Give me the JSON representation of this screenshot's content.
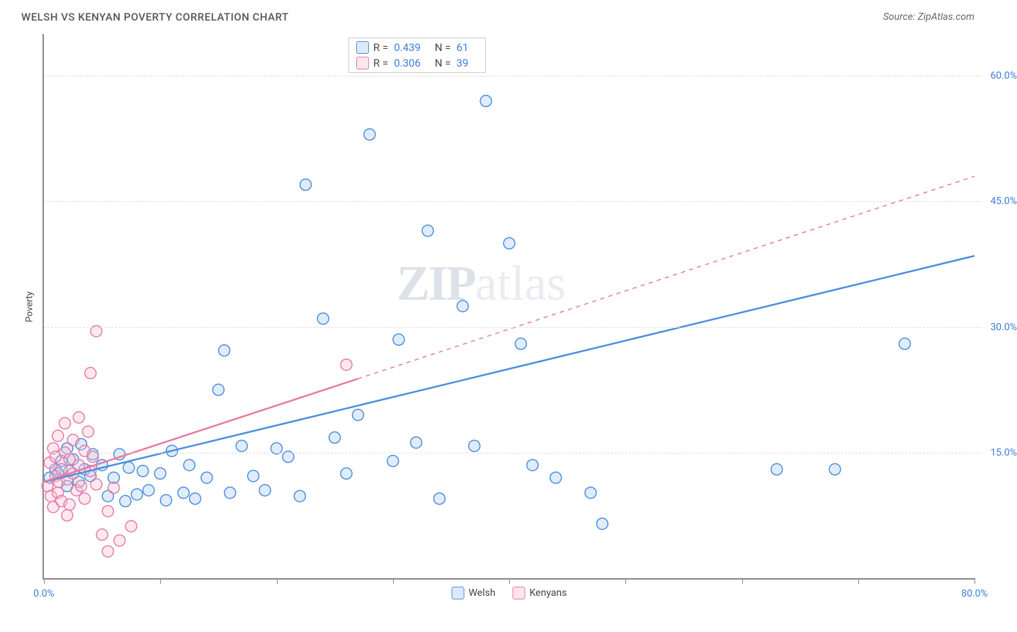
{
  "title": "WELSH VS KENYAN POVERTY CORRELATION CHART",
  "source": "Source: ZipAtlas.com",
  "y_axis_label": "Poverty",
  "watermark_zip": "ZIP",
  "watermark_atlas": "atlas",
  "chart": {
    "type": "scatter",
    "background_color": "#ffffff",
    "grid_color": "#dddddd",
    "axis_color": "#888888",
    "tick_label_color": "#3b7dd8",
    "xlim": [
      0,
      80
    ],
    "ylim": [
      0,
      65
    ],
    "y_ticks": [
      15,
      30,
      45,
      60
    ],
    "y_tick_labels": [
      "15.0%",
      "30.0%",
      "45.0%",
      "60.0%"
    ],
    "x_ticks": [
      0,
      10,
      20,
      30,
      40,
      50,
      60,
      70,
      80
    ],
    "x_min_label": "0.0%",
    "x_max_label": "80.0%",
    "marker_radius": 8,
    "series": [
      {
        "name": "Welsh",
        "color_stroke": "#4c8fdd",
        "color_fill": "#a7c9f0",
        "R": "0.439",
        "N": "61",
        "trend": {
          "x1": 0,
          "y1": 11.5,
          "x2": 80,
          "y2": 38.5,
          "solid_until_x": 80
        },
        "points": [
          [
            0.5,
            12
          ],
          [
            1,
            13
          ],
          [
            1.2,
            12.5
          ],
          [
            1.5,
            14
          ],
          [
            2,
            11
          ],
          [
            2,
            15.5
          ],
          [
            2.2,
            12.8
          ],
          [
            2.5,
            14.2
          ],
          [
            3,
            11.5
          ],
          [
            3.2,
            16
          ],
          [
            3.5,
            13
          ],
          [
            4,
            12.2
          ],
          [
            4.2,
            14.8
          ],
          [
            5,
            13.5
          ],
          [
            5.5,
            9.8
          ],
          [
            6,
            12
          ],
          [
            6.5,
            14.8
          ],
          [
            7,
            9.2
          ],
          [
            7.3,
            13.2
          ],
          [
            8,
            10
          ],
          [
            8.5,
            12.8
          ],
          [
            9,
            10.5
          ],
          [
            10,
            12.5
          ],
          [
            10.5,
            9.3
          ],
          [
            11,
            15.2
          ],
          [
            12,
            10.2
          ],
          [
            12.5,
            13.5
          ],
          [
            13,
            9.5
          ],
          [
            14,
            12
          ],
          [
            15,
            22.5
          ],
          [
            15.5,
            27.2
          ],
          [
            16,
            10.2
          ],
          [
            17,
            15.8
          ],
          [
            18,
            12.2
          ],
          [
            19,
            10.5
          ],
          [
            20,
            15.5
          ],
          [
            21,
            14.5
          ],
          [
            22,
            9.8
          ],
          [
            22.5,
            47
          ],
          [
            24,
            31
          ],
          [
            25,
            16.8
          ],
          [
            26,
            12.5
          ],
          [
            27,
            19.5
          ],
          [
            28,
            53
          ],
          [
            30,
            14
          ],
          [
            30.5,
            28.5
          ],
          [
            32,
            16.2
          ],
          [
            33,
            41.5
          ],
          [
            34,
            9.5
          ],
          [
            36,
            32.5
          ],
          [
            37,
            15.8
          ],
          [
            38,
            57
          ],
          [
            40,
            40
          ],
          [
            41,
            28
          ],
          [
            42,
            13.5
          ],
          [
            44,
            12
          ],
          [
            47,
            10.2
          ],
          [
            48,
            6.5
          ],
          [
            63,
            13
          ],
          [
            68,
            13
          ],
          [
            74,
            28
          ]
        ]
      },
      {
        "name": "Kenyans",
        "color_stroke": "#e87ba2",
        "color_fill": "#f5c0d3",
        "R": "0.306",
        "N": "39",
        "trend": {
          "x1": 0,
          "y1": 11.5,
          "x2": 80,
          "y2": 48,
          "solid_until_x": 27
        },
        "points": [
          [
            0.3,
            11
          ],
          [
            0.5,
            13.8
          ],
          [
            0.6,
            9.8
          ],
          [
            0.8,
            15.5
          ],
          [
            0.8,
            8.5
          ],
          [
            1,
            12.2
          ],
          [
            1,
            14.5
          ],
          [
            1.2,
            10.2
          ],
          [
            1.2,
            17
          ],
          [
            1.3,
            11.5
          ],
          [
            1.5,
            13
          ],
          [
            1.5,
            9.2
          ],
          [
            1.8,
            15
          ],
          [
            1.8,
            18.5
          ],
          [
            2,
            11.8
          ],
          [
            2,
            7.5
          ],
          [
            2.2,
            14.2
          ],
          [
            2.2,
            8.8
          ],
          [
            2.5,
            12.5
          ],
          [
            2.5,
            16.5
          ],
          [
            2.8,
            10.5
          ],
          [
            3,
            19.2
          ],
          [
            3,
            13.5
          ],
          [
            3.2,
            11
          ],
          [
            3.5,
            15.2
          ],
          [
            3.5,
            9.5
          ],
          [
            3.8,
            17.5
          ],
          [
            4,
            12.8
          ],
          [
            4,
            24.5
          ],
          [
            4.2,
            14.5
          ],
          [
            4.5,
            11.2
          ],
          [
            4.5,
            29.5
          ],
          [
            5,
            5.2
          ],
          [
            5.5,
            3.2
          ],
          [
            5.5,
            8
          ],
          [
            6,
            10.8
          ],
          [
            6.5,
            4.5
          ],
          [
            7.5,
            6.2
          ],
          [
            26,
            25.5
          ]
        ]
      }
    ]
  },
  "legend_top": {
    "r_label": "R =",
    "n_label": "N ="
  },
  "legend_bottom": [
    "Welsh",
    "Kenyans"
  ]
}
